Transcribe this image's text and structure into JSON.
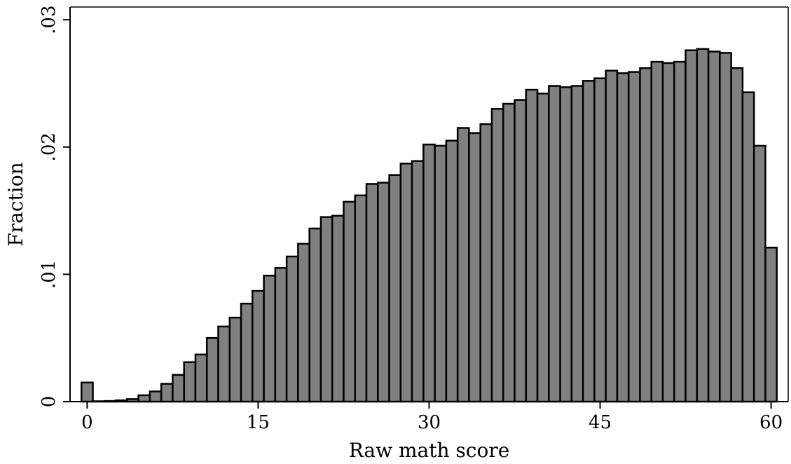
{
  "chart_data": {
    "type": "bar",
    "title": "",
    "xlabel": "Raw math score",
    "ylabel": "Fraction",
    "xlim": [
      -1.5,
      61.5
    ],
    "ylim": [
      0,
      0.031
    ],
    "xticks": [
      {
        "value": 0,
        "label": "0"
      },
      {
        "value": 15,
        "label": "15"
      },
      {
        "value": 30,
        "label": "30"
      },
      {
        "value": 45,
        "label": "45"
      },
      {
        "value": 60,
        "label": "60"
      }
    ],
    "yticks": [
      {
        "value": 0,
        "label": "0"
      },
      {
        "value": 0.01,
        "label": ".01"
      },
      {
        "value": 0.02,
        "label": ".02"
      },
      {
        "value": 0.03,
        "label": ".03"
      }
    ],
    "grid": false,
    "bar_color": "#808080",
    "edge_color": "#000000",
    "x": [
      0,
      1,
      2,
      3,
      4,
      5,
      6,
      7,
      8,
      9,
      10,
      11,
      12,
      13,
      14,
      15,
      16,
      17,
      18,
      19,
      20,
      21,
      22,
      23,
      24,
      25,
      26,
      27,
      28,
      29,
      30,
      31,
      32,
      33,
      34,
      35,
      36,
      37,
      38,
      39,
      40,
      41,
      42,
      43,
      44,
      45,
      46,
      47,
      48,
      49,
      50,
      51,
      52,
      53,
      54,
      55,
      56,
      57,
      58,
      59,
      60
    ],
    "values": [
      0.0015,
      3e-05,
      5e-05,
      0.0001,
      0.0002,
      0.0005,
      0.0008,
      0.0014,
      0.0021,
      0.0031,
      0.0037,
      0.005,
      0.0059,
      0.0066,
      0.0077,
      0.0087,
      0.0099,
      0.0105,
      0.0114,
      0.0124,
      0.0136,
      0.0145,
      0.0146,
      0.0157,
      0.0162,
      0.0171,
      0.0172,
      0.0178,
      0.0187,
      0.0189,
      0.0202,
      0.0201,
      0.0205,
      0.0215,
      0.0211,
      0.0218,
      0.023,
      0.0234,
      0.0237,
      0.0245,
      0.0242,
      0.0248,
      0.0247,
      0.0248,
      0.0252,
      0.0254,
      0.026,
      0.0258,
      0.0259,
      0.0262,
      0.0267,
      0.0266,
      0.0267,
      0.0276,
      0.0277,
      0.0275,
      0.0274,
      0.0262,
      0.0243,
      0.0201,
      0.0121
    ]
  }
}
